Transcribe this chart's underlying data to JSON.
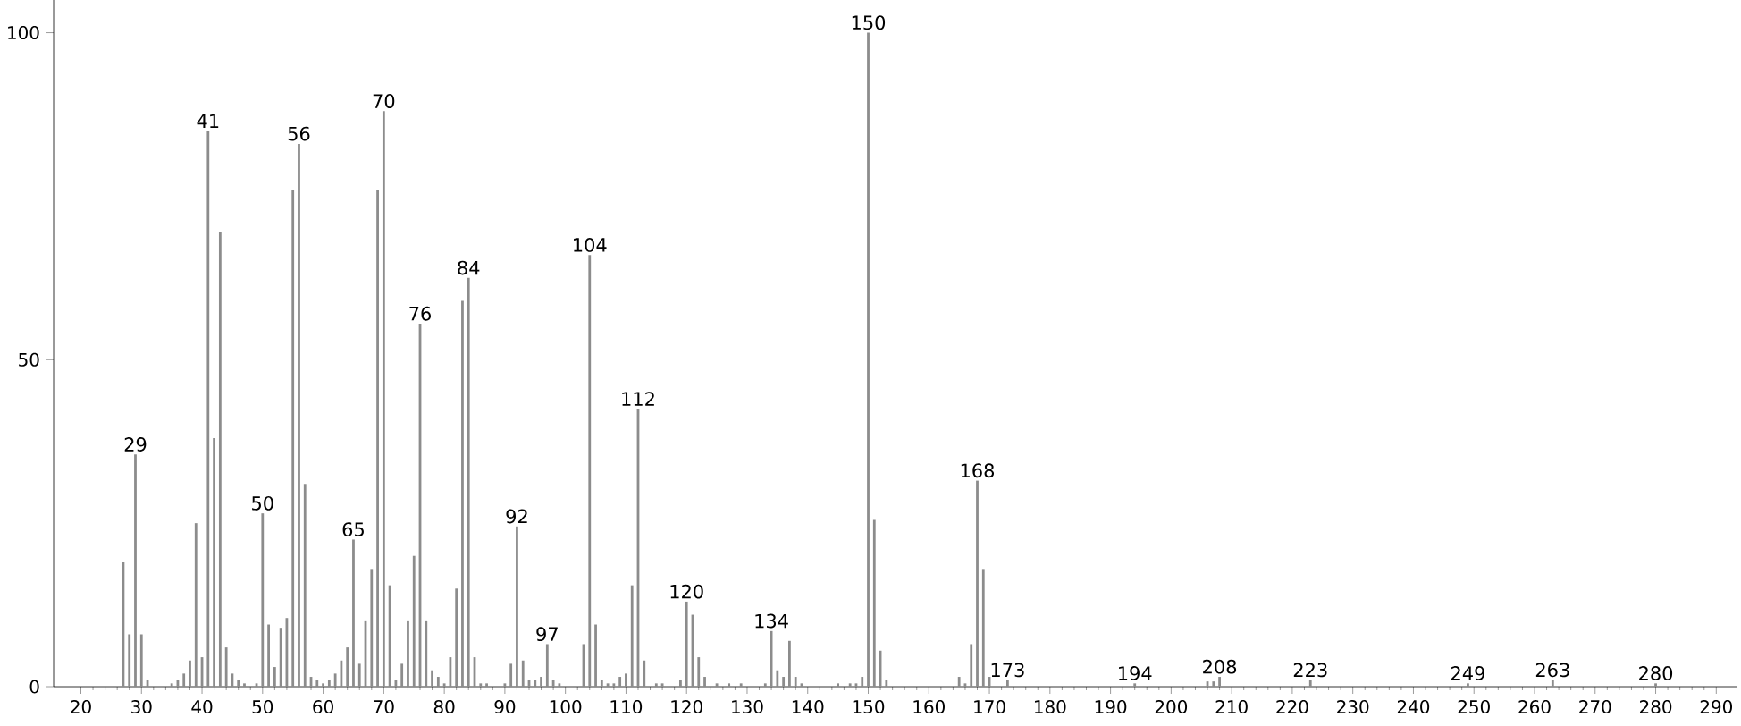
{
  "chart_data": {
    "type": "bar",
    "color": "#8c8c8c",
    "x": [
      27,
      28,
      29,
      30,
      31,
      35,
      36,
      37,
      38,
      39,
      40,
      41,
      42,
      43,
      44,
      45,
      46,
      47,
      49,
      50,
      51,
      52,
      53,
      54,
      55,
      56,
      57,
      58,
      59,
      60,
      61,
      62,
      63,
      64,
      65,
      66,
      67,
      68,
      69,
      70,
      71,
      72,
      73,
      74,
      75,
      76,
      77,
      78,
      79,
      80,
      81,
      82,
      83,
      84,
      85,
      86,
      87,
      90,
      91,
      92,
      93,
      94,
      95,
      96,
      97,
      98,
      99,
      103,
      104,
      105,
      106,
      107,
      108,
      109,
      110,
      111,
      112,
      113,
      115,
      116,
      119,
      120,
      121,
      122,
      123,
      125,
      127,
      129,
      133,
      134,
      135,
      136,
      137,
      138,
      139,
      145,
      147,
      148,
      149,
      150,
      151,
      152,
      153,
      165,
      166,
      167,
      168,
      169,
      170,
      173,
      194,
      206,
      207,
      208,
      223,
      249,
      263,
      280
    ],
    "values": [
      19,
      8,
      35.5,
      8,
      1,
      0.5,
      1,
      2,
      4,
      25,
      4.5,
      85,
      38,
      69.5,
      6,
      2,
      1,
      0.5,
      0.5,
      26.5,
      9.5,
      3,
      9,
      10.5,
      76,
      83,
      31,
      1.5,
      1,
      0.5,
      1,
      2,
      4,
      6,
      22.5,
      3.5,
      10,
      18,
      76,
      88,
      15.5,
      1,
      3.5,
      10,
      20,
      55.5,
      10,
      2.5,
      1.5,
      0.5,
      4.5,
      15,
      59,
      62.5,
      4.5,
      0.5,
      0.5,
      0.5,
      3.5,
      24.5,
      4,
      1,
      1,
      1.5,
      6.5,
      1,
      0.5,
      6.5,
      66,
      9.5,
      1,
      0.5,
      0.5,
      1.5,
      2,
      15.5,
      42.5,
      4,
      0.5,
      0.5,
      1,
      13,
      11,
      4.5,
      1.5,
      0.5,
      0.5,
      0.5,
      0.5,
      8.5,
      2.5,
      1.5,
      7,
      1.5,
      0.5,
      0.5,
      0.5,
      0.5,
      1.5,
      100,
      25.5,
      5.5,
      1,
      1.5,
      0.5,
      6.5,
      31.5,
      18,
      1.5,
      1,
      0.5,
      0.8,
      0.8,
      1.5,
      1,
      0.5,
      1,
      0.5
    ],
    "xlim": [
      15.5,
      293.5
    ],
    "ylim": [
      0,
      105
    ],
    "xticks": [
      20,
      30,
      40,
      50,
      60,
      70,
      80,
      90,
      100,
      110,
      120,
      130,
      140,
      150,
      160,
      170,
      180,
      190,
      200,
      210,
      220,
      230,
      240,
      250,
      260,
      270,
      280,
      290
    ],
    "yticks": [
      0,
      50,
      100
    ],
    "annotations": [
      {
        "text": "29",
        "x": 29,
        "y": 35.5
      },
      {
        "text": "41",
        "x": 41,
        "y": 85
      },
      {
        "text": "50",
        "x": 50,
        "y": 26.5
      },
      {
        "text": "56",
        "x": 56,
        "y": 83
      },
      {
        "text": "65",
        "x": 65,
        "y": 22.5
      },
      {
        "text": "70",
        "x": 70,
        "y": 88
      },
      {
        "text": "76",
        "x": 76,
        "y": 55.5
      },
      {
        "text": "84",
        "x": 84,
        "y": 62.5
      },
      {
        "text": "92",
        "x": 92,
        "y": 24.5
      },
      {
        "text": "97",
        "x": 97,
        "y": 6.5
      },
      {
        "text": "104",
        "x": 104,
        "y": 66
      },
      {
        "text": "112",
        "x": 112,
        "y": 42.5
      },
      {
        "text": "120",
        "x": 120,
        "y": 13
      },
      {
        "text": "134",
        "x": 134,
        "y": 8.5
      },
      {
        "text": "150",
        "x": 150,
        "y": 100
      },
      {
        "text": "168",
        "x": 168,
        "y": 31.5
      },
      {
        "text": "173",
        "x": 173,
        "y": 1
      },
      {
        "text": "194",
        "x": 194,
        "y": 0.5
      },
      {
        "text": "208",
        "x": 208,
        "y": 1.5
      },
      {
        "text": "223",
        "x": 223,
        "y": 1
      },
      {
        "text": "249",
        "x": 249,
        "y": 0.5
      },
      {
        "text": "263",
        "x": 263,
        "y": 1
      },
      {
        "text": "280",
        "x": 280,
        "y": 0.5
      }
    ]
  }
}
